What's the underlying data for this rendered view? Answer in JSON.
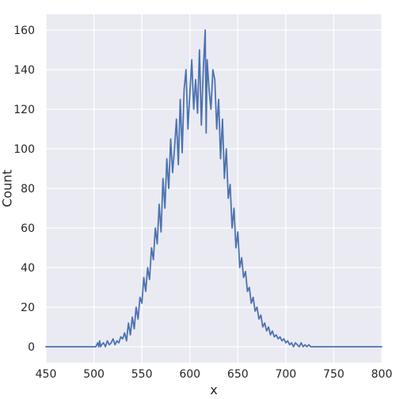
{
  "chart_data": {
    "type": "line",
    "title": "",
    "xlabel": "x",
    "ylabel": "Count",
    "xlim": [
      450,
      800
    ],
    "ylim": [
      -8,
      168
    ],
    "xticks": [
      450,
      500,
      550,
      600,
      650,
      700,
      750,
      800
    ],
    "yticks": [
      0,
      20,
      40,
      60,
      80,
      100,
      120,
      140,
      160
    ],
    "grid": true,
    "legend": "none",
    "series": [
      {
        "name": "Count",
        "color": "#4c72b0",
        "x": [
          450,
          502,
          504,
          505,
          506,
          507,
          508,
          510,
          512,
          514,
          516,
          518,
          520,
          522,
          524,
          526,
          528,
          530,
          532,
          534,
          536,
          538,
          540,
          542,
          544,
          546,
          548,
          550,
          552,
          554,
          556,
          558,
          560,
          562,
          564,
          566,
          568,
          570,
          572,
          574,
          576,
          578,
          580,
          582,
          584,
          586,
          588,
          590,
          592,
          594,
          596,
          598,
          600,
          602,
          604,
          606,
          608,
          610,
          612,
          614,
          616,
          617,
          618,
          620,
          622,
          624,
          626,
          628,
          630,
          632,
          634,
          636,
          638,
          640,
          642,
          644,
          646,
          648,
          650,
          652,
          654,
          656,
          658,
          660,
          662,
          664,
          666,
          668,
          670,
          672,
          674,
          676,
          678,
          680,
          682,
          684,
          686,
          688,
          690,
          692,
          694,
          696,
          698,
          700,
          702,
          704,
          706,
          708,
          710,
          712,
          714,
          716,
          718,
          720,
          722,
          724,
          726,
          728,
          800
        ],
        "y": [
          0,
          0,
          2,
          0,
          3,
          0,
          1,
          2,
          0,
          3,
          1,
          2,
          4,
          1,
          3,
          2,
          5,
          4,
          7,
          3,
          12,
          6,
          15,
          9,
          20,
          14,
          25,
          22,
          35,
          28,
          40,
          34,
          50,
          44,
          60,
          52,
          72,
          58,
          85,
          70,
          95,
          80,
          105,
          88,
          100,
          115,
          92,
          125,
          98,
          130,
          140,
          110,
          128,
          145,
          120,
          135,
          118,
          150,
          112,
          140,
          160,
          108,
          145,
          130,
          120,
          140,
          135,
          110,
          125,
          95,
          115,
          85,
          100,
          75,
          82,
          60,
          70,
          50,
          58,
          40,
          45,
          35,
          38,
          28,
          30,
          22,
          25,
          18,
          20,
          14,
          16,
          10,
          12,
          8,
          10,
          6,
          8,
          5,
          6,
          4,
          5,
          3,
          4,
          2,
          3,
          1,
          2,
          0,
          2,
          1,
          0,
          2,
          0,
          1,
          0,
          1,
          0,
          0,
          0
        ]
      }
    ]
  }
}
